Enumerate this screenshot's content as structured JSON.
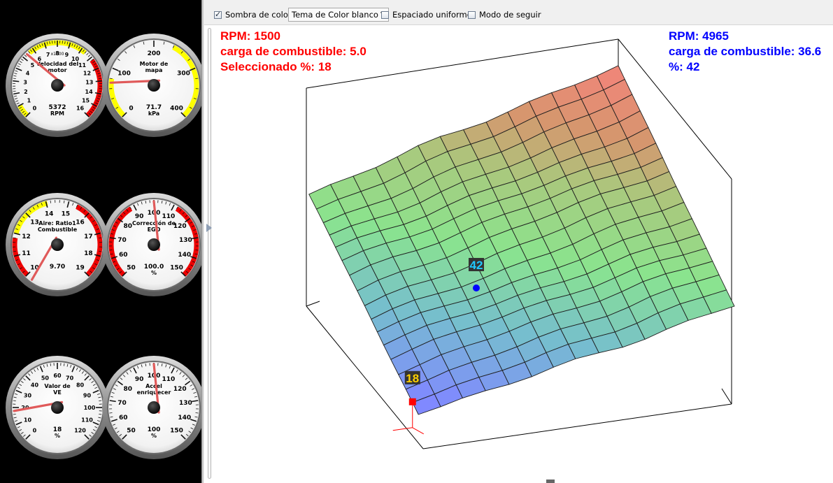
{
  "toolbar": {
    "shade_label": "Sombra de color",
    "shade_checked": true,
    "theme_label": "Tema de Color blanco",
    "uniform_label": "Espaciado uniforme",
    "follow_label": "Modo de seguir"
  },
  "left_info": {
    "rpm": "RPM: 1500",
    "load": "carga de combustible: 5.0",
    "selected": "Seleccionado %: 18"
  },
  "right_info": {
    "rpm": "RPM: 4965",
    "load": "carga de combustible: 36.6",
    "pct": "%: 42"
  },
  "markers": {
    "hover_value": "42",
    "selected_value": "18"
  },
  "colors": {
    "red_text": "#ff0000",
    "blue_text": "#0000ff",
    "surface_low": "#7f8aff",
    "surface_mid": "#8fe38f",
    "surface_high": "#ef8a7a"
  },
  "gauges": [
    {
      "title": "Velocidad del motor",
      "value": "5372",
      "unit": "RPM",
      "multiplier": "x1000",
      "ticks": [
        "0",
        "1",
        "2",
        "3",
        "4",
        "5",
        "6",
        "7",
        "8",
        "9",
        "10",
        "11",
        "12",
        "13",
        "14",
        "15",
        "16"
      ],
      "min": 0,
      "max": 16,
      "reading": 5.372
    },
    {
      "title": "Motor de mapa",
      "value": "71.7",
      "unit": "kPa",
      "ticks": [
        "0",
        "100",
        "200",
        "300",
        "400"
      ],
      "min": 0,
      "max": 400,
      "reading": 71.7
    },
    {
      "title": "Aire: Ratio1 Combustible",
      "value": "9.70",
      "unit": "",
      "ticks": [
        "10",
        "11",
        "12",
        "13",
        "14",
        "15",
        "16",
        "17",
        "18",
        "19"
      ],
      "min": 10,
      "max": 19,
      "reading": 9.7
    },
    {
      "title": "Corrección de EGO",
      "value": "100.0",
      "unit": "%",
      "ticks": [
        "50",
        "60",
        "70",
        "80",
        "90",
        "100",
        "110",
        "120",
        "130",
        "140",
        "150"
      ],
      "min": 50,
      "max": 150,
      "reading": 100
    },
    {
      "title": "Valor de VE",
      "value": "18",
      "unit": "%",
      "ticks": [
        "0",
        "10",
        "20",
        "30",
        "40",
        "50",
        "60",
        "70",
        "80",
        "90",
        "100",
        "110",
        "120"
      ],
      "min": 0,
      "max": 120,
      "reading": 18
    },
    {
      "title": "Accel enriquecer",
      "value": "100",
      "unit": "%",
      "ticks": [
        "50",
        "60",
        "70",
        "80",
        "90",
        "100",
        "110",
        "120",
        "130",
        "140",
        "150"
      ],
      "min": 50,
      "max": 150,
      "reading": 100
    }
  ]
}
